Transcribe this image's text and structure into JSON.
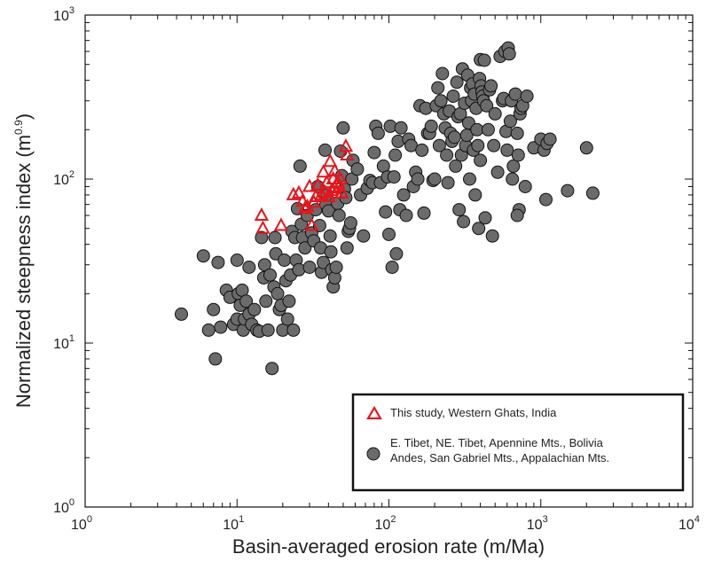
{
  "chart_data": {
    "type": "scatter",
    "title": "",
    "xlabel": "Basin-averaged erosion rate (m/Ma)",
    "ylabel_main": "Normalized steepness index (m",
    "ylabel_sup": "0.9",
    "ylabel_end": ")",
    "x_scale": "log",
    "y_scale": "log",
    "xlim": [
      1,
      10000
    ],
    "ylim": [
      1,
      1000
    ],
    "grid": false,
    "legend_position": "bottom-right",
    "x_ticks": [
      {
        "base": "10",
        "exp": "0"
      },
      {
        "base": "10",
        "exp": "1"
      },
      {
        "base": "10",
        "exp": "2"
      },
      {
        "base": "10",
        "exp": "3"
      },
      {
        "base": "10",
        "exp": "4"
      }
    ],
    "y_ticks": [
      {
        "base": "10",
        "exp": "0"
      },
      {
        "base": "10",
        "exp": "1"
      },
      {
        "base": "10",
        "exp": "2"
      },
      {
        "base": "10",
        "exp": "3"
      }
    ],
    "series": [
      {
        "name": "This study, Western Ghats, India",
        "marker": "triangle-open",
        "color": "#e8141b",
        "points": [
          [
            14.5,
            60
          ],
          [
            14.8,
            50
          ],
          [
            19.5,
            52
          ],
          [
            23.5,
            80
          ],
          [
            25.5,
            82
          ],
          [
            27,
            73
          ],
          [
            28,
            66
          ],
          [
            29,
            68
          ],
          [
            30,
            90
          ],
          [
            31,
            52
          ],
          [
            32,
            72
          ],
          [
            33,
            78
          ],
          [
            34,
            92
          ],
          [
            36,
            80
          ],
          [
            37,
            110
          ],
          [
            38,
            83
          ],
          [
            39,
            95
          ],
          [
            40,
            78
          ],
          [
            41,
            128
          ],
          [
            42,
            85
          ],
          [
            43,
            100
          ],
          [
            44,
            112
          ],
          [
            45,
            82
          ],
          [
            46,
            96
          ],
          [
            47,
            90
          ],
          [
            49,
            82
          ],
          [
            52,
            158
          ],
          [
            53,
            140
          ],
          [
            48,
            100
          ],
          [
            44,
            88
          ]
        ]
      },
      {
        "name_line1": "E. Tibet, NE. Tibet, Apennine Mts., Bolivia",
        "name_line2": "Andes, San Gabriel Mts., Appalachian Mts.",
        "marker": "circle-filled",
        "color": "#6b6b6b",
        "points": [
          [
            4.3,
            15
          ],
          [
            6,
            34
          ],
          [
            6.5,
            12
          ],
          [
            7,
            16
          ],
          [
            7.2,
            8
          ],
          [
            7.5,
            31
          ],
          [
            7.8,
            12.5
          ],
          [
            8.5,
            21
          ],
          [
            9,
            19
          ],
          [
            9.5,
            13
          ],
          [
            10,
            32
          ],
          [
            10,
            14
          ],
          [
            10.2,
            20
          ],
          [
            10.5,
            17
          ],
          [
            10.8,
            21
          ],
          [
            11,
            12
          ],
          [
            11.2,
            14
          ],
          [
            11.5,
            18
          ],
          [
            12,
            29
          ],
          [
            12,
            15
          ],
          [
            12.5,
            13
          ],
          [
            13,
            16
          ],
          [
            13.5,
            12
          ],
          [
            14,
            11.8
          ],
          [
            14.5,
            44
          ],
          [
            15,
            25
          ],
          [
            15.2,
            30
          ],
          [
            15.5,
            18
          ],
          [
            16,
            12
          ],
          [
            16.5,
            26
          ],
          [
            17,
            7
          ],
          [
            17.5,
            22
          ],
          [
            17.8,
            44
          ],
          [
            18,
            35
          ],
          [
            18.5,
            20
          ],
          [
            19,
            16
          ],
          [
            19.5,
            17
          ],
          [
            20,
            12
          ],
          [
            20.5,
            32
          ],
          [
            21,
            24
          ],
          [
            21.5,
            14
          ],
          [
            22,
            18
          ],
          [
            22.5,
            26
          ],
          [
            23,
            48
          ],
          [
            23.5,
            12
          ],
          [
            24,
            44
          ],
          [
            24.5,
            32
          ],
          [
            25,
            66
          ],
          [
            25.5,
            28
          ],
          [
            26,
            120
          ],
          [
            26.5,
            53
          ],
          [
            27,
            44
          ],
          [
            28,
            38
          ],
          [
            29,
            60
          ],
          [
            30,
            29
          ],
          [
            31,
            47
          ],
          [
            32,
            42
          ],
          [
            33,
            65
          ],
          [
            34,
            90
          ],
          [
            35,
            52
          ],
          [
            35.5,
            38
          ],
          [
            36,
            27
          ],
          [
            37,
            31
          ],
          [
            38,
            150
          ],
          [
            38.5,
            70
          ],
          [
            39,
            80
          ],
          [
            40,
            64
          ],
          [
            41,
            45
          ],
          [
            41.5,
            36
          ],
          [
            42,
            28
          ],
          [
            43,
            22
          ],
          [
            44,
            25
          ],
          [
            45,
            29
          ],
          [
            46,
            71
          ],
          [
            47,
            60
          ],
          [
            48,
            148
          ],
          [
            49,
            105
          ],
          [
            50,
            205
          ],
          [
            51,
            87
          ],
          [
            52,
            77
          ],
          [
            53,
            38
          ],
          [
            54,
            48
          ],
          [
            55,
            50
          ],
          [
            56,
            54
          ],
          [
            57,
            100
          ],
          [
            58,
            130
          ],
          [
            62,
            115
          ],
          [
            65,
            80
          ],
          [
            68,
            45
          ],
          [
            72,
            88
          ],
          [
            75,
            98
          ],
          [
            78,
            95
          ],
          [
            80,
            145
          ],
          [
            82,
            210
          ],
          [
            85,
            190
          ],
          [
            88,
            95
          ],
          [
            92,
            120
          ],
          [
            95,
            63
          ],
          [
            98,
            103
          ],
          [
            100,
            46
          ],
          [
            102,
            210
          ],
          [
            105,
            29
          ],
          [
            108,
            103
          ],
          [
            110,
            140
          ],
          [
            112,
            35
          ],
          [
            115,
            170
          ],
          [
            118,
            65
          ],
          [
            120,
            205
          ],
          [
            125,
            80
          ],
          [
            130,
            60
          ],
          [
            135,
            175
          ],
          [
            140,
            160
          ],
          [
            145,
            90
          ],
          [
            150,
            110
          ],
          [
            155,
            100
          ],
          [
            160,
            280
          ],
          [
            165,
            150
          ],
          [
            170,
            62
          ],
          [
            175,
            270
          ],
          [
            180,
            190
          ],
          [
            185,
            190
          ],
          [
            190,
            210
          ],
          [
            195,
            98
          ],
          [
            200,
            100
          ],
          [
            205,
            280
          ],
          [
            210,
            360
          ],
          [
            215,
            160
          ],
          [
            220,
            300
          ],
          [
            225,
            440
          ],
          [
            230,
            250
          ],
          [
            235,
            205
          ],
          [
            240,
            140
          ],
          [
            245,
            95
          ],
          [
            250,
            260
          ],
          [
            255,
            190
          ],
          [
            260,
            170
          ],
          [
            265,
            320
          ],
          [
            270,
            180
          ],
          [
            275,
            120
          ],
          [
            280,
            390
          ],
          [
            285,
            240
          ],
          [
            290,
            65
          ],
          [
            295,
            250
          ],
          [
            300,
            140
          ],
          [
            305,
            470
          ],
          [
            310,
            55
          ],
          [
            315,
            290
          ],
          [
            320,
            160
          ],
          [
            325,
            185
          ],
          [
            330,
            430
          ],
          [
            335,
            220
          ],
          [
            340,
            100
          ],
          [
            345,
            360
          ],
          [
            350,
            300
          ],
          [
            355,
            380
          ],
          [
            360,
            150
          ],
          [
            365,
            330
          ],
          [
            370,
            80
          ],
          [
            375,
            270
          ],
          [
            380,
            200
          ],
          [
            385,
            160
          ],
          [
            390,
            50
          ],
          [
            395,
            410
          ],
          [
            400,
            535
          ],
          [
            405,
            370
          ],
          [
            410,
            340
          ],
          [
            415,
            320
          ],
          [
            420,
            300
          ],
          [
            425,
            530
          ],
          [
            430,
            58
          ],
          [
            440,
            280
          ],
          [
            450,
            200
          ],
          [
            460,
            350
          ],
          [
            470,
            370
          ],
          [
            480,
            45
          ],
          [
            490,
            160
          ],
          [
            500,
            250
          ],
          [
            520,
            110
          ],
          [
            540,
            560
          ],
          [
            560,
            300
          ],
          [
            570,
            310
          ],
          [
            580,
            600
          ],
          [
            590,
            195
          ],
          [
            600,
            150
          ],
          [
            610,
            630
          ],
          [
            620,
            580
          ],
          [
            630,
            225
          ],
          [
            640,
            300
          ],
          [
            650,
            100
          ],
          [
            660,
            120
          ],
          [
            680,
            330
          ],
          [
            700,
            190
          ],
          [
            710,
            140
          ],
          [
            720,
            65
          ],
          [
            730,
            250
          ],
          [
            740,
            270
          ],
          [
            760,
            280
          ],
          [
            790,
            90
          ],
          [
            810,
            320
          ],
          [
            900,
            155
          ],
          [
            1000,
            175
          ],
          [
            1050,
            150
          ],
          [
            1080,
            75
          ],
          [
            1100,
            165
          ],
          [
            1150,
            175
          ],
          [
            1500,
            85
          ],
          [
            2000,
            155
          ],
          [
            2200,
            82
          ],
          [
            700,
            60
          ],
          [
            400,
            130
          ]
        ]
      }
    ]
  }
}
